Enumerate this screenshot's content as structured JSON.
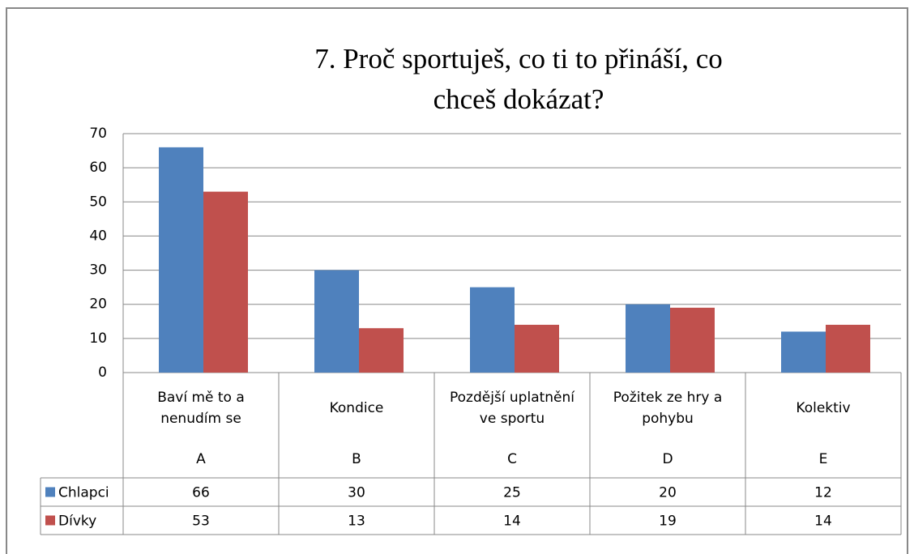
{
  "chart_data": {
    "type": "bar",
    "title": "7. Proč sportuješ, co ti to přináší, co chceš dokázat?",
    "categories": [
      "Baví mě to a nenudím se",
      "Kondice",
      "Pozdější uplatnění ve sportu",
      "Požitek ze hry a pohybu",
      "Kolektiv"
    ],
    "category_codes": [
      "A",
      "B",
      "C",
      "D",
      "E"
    ],
    "series": [
      {
        "name": "Chlapci",
        "color": "#4f81bd",
        "values": [
          66,
          30,
          25,
          20,
          12
        ]
      },
      {
        "name": "Dívky",
        "color": "#c0504d",
        "values": [
          53,
          13,
          14,
          19,
          14
        ]
      }
    ],
    "ylim": [
      0,
      70
    ],
    "yticks": [
      0,
      10,
      20,
      30,
      40,
      50,
      60,
      70
    ],
    "grid": true,
    "data_table": true
  }
}
